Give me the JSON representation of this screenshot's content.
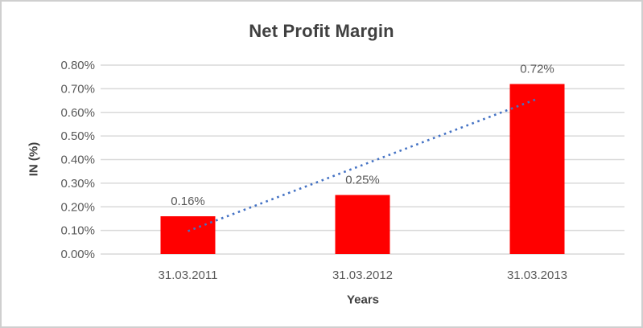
{
  "window": {
    "background": "#FFFFFF",
    "border_color": "#CFCFCF"
  },
  "chart_data": {
    "type": "bar",
    "title": "Net Profit Margin",
    "categories": [
      "31.03.2011",
      "31.03.2012",
      "31.03.2013"
    ],
    "values": [
      0.16,
      0.25,
      0.72
    ],
    "data_labels": [
      "0.16%",
      "0.25%",
      "0.72%"
    ],
    "xlabel": "Years",
    "ylabel": "IN (%)",
    "ylim": [
      0,
      0.8
    ],
    "ytick_step": 0.1,
    "ytick_labels": [
      "0.00%",
      "0.10%",
      "0.20%",
      "0.30%",
      "0.40%",
      "0.50%",
      "0.60%",
      "0.70%",
      "0.80%"
    ],
    "grid": true,
    "legend": "none",
    "bar_color": "#FF0000",
    "trendline": {
      "type": "linear",
      "style": "dotted",
      "color": "#4472C4",
      "start_value": 0.097,
      "end_value": 0.657
    },
    "style": {
      "title_color": "#404040",
      "axis_title_color": "#404040",
      "tick_label_color": "#595959",
      "data_label_color": "#595959",
      "gridline_color": "#D9D9D9"
    }
  }
}
